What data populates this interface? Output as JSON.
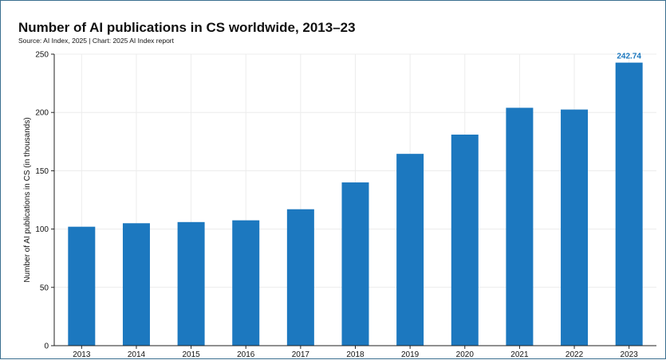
{
  "title": "Number of AI publications in CS worldwide, 2013–23",
  "subtitle": "Source: AI Index, 2025 | Chart: 2025 AI Index report",
  "colors": {
    "bar": "#1c78bf",
    "highlight_label": "#1c78bf",
    "grid": "#ececec",
    "axis": "#222222",
    "text": "#111111"
  },
  "chart_data": {
    "type": "bar",
    "title": "Number of AI publications in CS worldwide, 2013–23",
    "subtitle": "Source: AI Index, 2025 | Chart: 2025 AI Index report",
    "xlabel": "",
    "ylabel": "Number of AI publications in CS (in thousands)",
    "categories": [
      "2013",
      "2014",
      "2015",
      "2016",
      "2017",
      "2018",
      "2019",
      "2020",
      "2021",
      "2022",
      "2023"
    ],
    "values": [
      102,
      105,
      106,
      107.5,
      117,
      140,
      164.5,
      181,
      204,
      202.5,
      242.74
    ],
    "ylim": [
      0,
      250
    ],
    "yticks": [
      "0",
      "50",
      "100",
      "150",
      "200",
      "250"
    ],
    "data_labels": [
      {
        "category": "2023",
        "text": "242.74"
      }
    ],
    "grid": true,
    "legend": "none"
  }
}
